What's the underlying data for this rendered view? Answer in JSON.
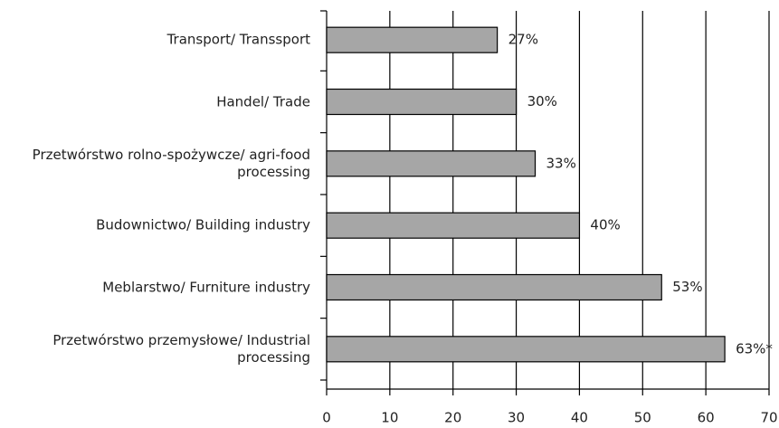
{
  "chart_data": {
    "type": "bar",
    "orientation": "horizontal",
    "categories": [
      "Transport/ Transsport",
      "Handel/ Trade",
      "Przetwórstwo rolno-spożywcze/ agri-food\nprocessing",
      "Budownictwo/ Building industry",
      "Meblarstwo/ Furniture industry",
      "Przetwórstwo przemysłowe/ Industrial\nprocessing"
    ],
    "values": [
      27,
      30,
      33,
      40,
      53,
      63
    ],
    "value_labels": [
      "27%",
      "30%",
      "33%",
      "40%",
      "53%",
      "63%*"
    ],
    "color": "#a6a6a6",
    "xlim": [
      0,
      70
    ],
    "xticks": [
      0,
      10,
      20,
      30,
      40,
      50,
      60,
      70
    ],
    "grid": true
  }
}
